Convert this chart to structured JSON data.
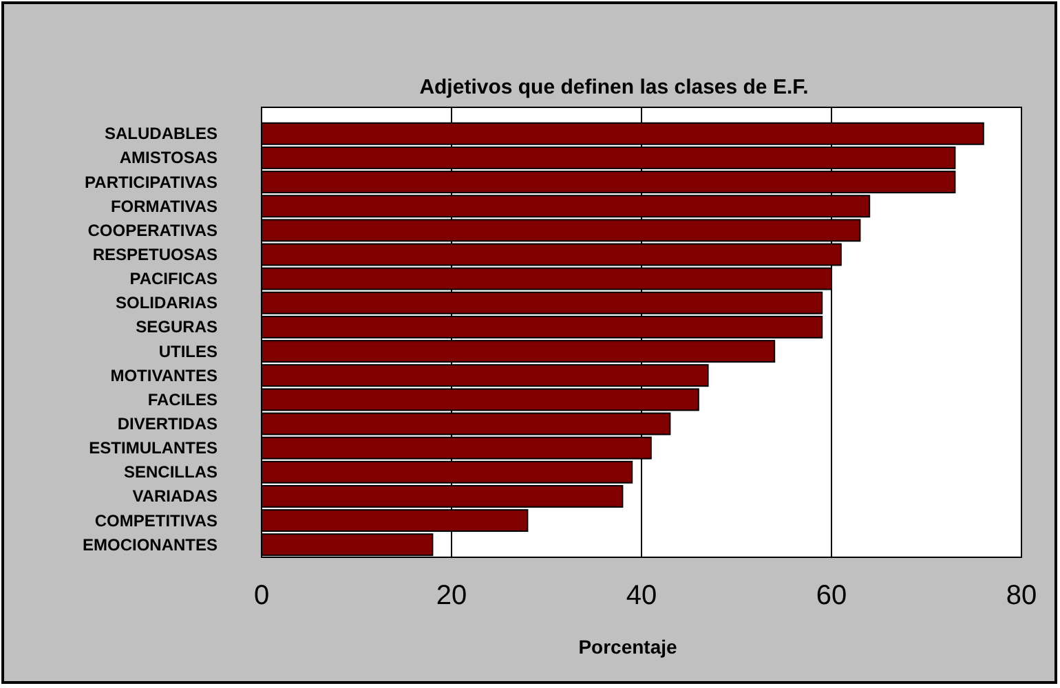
{
  "chart_data": {
    "type": "bar",
    "orientation": "horizontal",
    "title": "Adjetivos que definen las clases de E.F.",
    "xlabel": "Porcentaje",
    "categories": [
      "SALUDABLES",
      "AMISTOSAS",
      "PARTICIPATIVAS",
      "FORMATIVAS",
      "COOPERATIVAS",
      "RESPETUOSAS",
      "PACIFICAS",
      "SOLIDARIAS",
      "SEGURAS",
      "UTILES",
      "MOTIVANTES",
      "FACILES",
      "DIVERTIDAS",
      "ESTIMULANTES",
      "SENCILLAS",
      "VARIADAS",
      "COMPETITIVAS",
      "EMOCIONANTES"
    ],
    "values": [
      76,
      73,
      73,
      64,
      63,
      61,
      60,
      59,
      59,
      54,
      47,
      46,
      43,
      41,
      39,
      38,
      28,
      18
    ],
    "color": "#800000",
    "xlim": [
      0,
      80
    ],
    "xticks": [
      0,
      20,
      40,
      60,
      80
    ],
    "grid": "x"
  }
}
